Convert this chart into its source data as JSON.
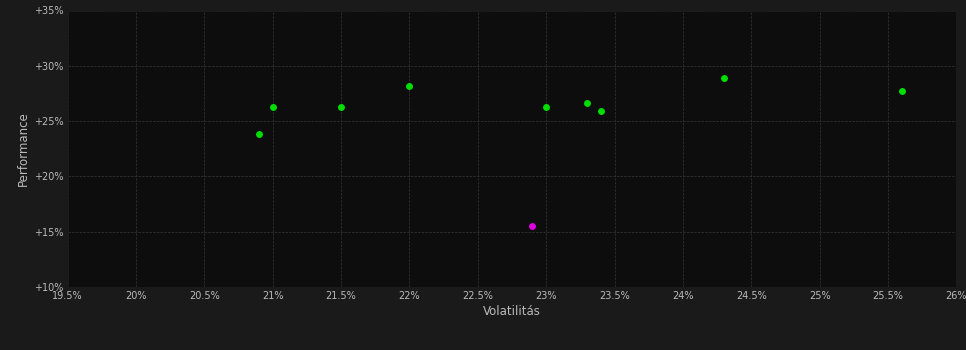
{
  "green_points": [
    [
      20.9,
      23.8
    ],
    [
      21.0,
      26.3
    ],
    [
      21.5,
      26.3
    ],
    [
      22.0,
      28.2
    ],
    [
      23.0,
      26.3
    ],
    [
      23.3,
      26.6
    ],
    [
      23.4,
      25.9
    ],
    [
      24.3,
      28.9
    ],
    [
      25.6,
      27.7
    ]
  ],
  "magenta_points": [
    [
      22.9,
      15.5
    ]
  ],
  "green_color": "#00dd00",
  "magenta_color": "#dd00dd",
  "bg_color": "#1a1a1a",
  "plot_bg_color": "#0d0d0d",
  "grid_color": "#3a3a3a",
  "text_color": "#bbbbbb",
  "xlabel": "Volatilitás",
  "ylabel": "Performance",
  "xlim": [
    19.5,
    26.0
  ],
  "ylim": [
    10.0,
    35.0
  ],
  "xticks": [
    19.5,
    20.0,
    20.5,
    21.0,
    21.5,
    22.0,
    22.5,
    23.0,
    23.5,
    24.0,
    24.5,
    25.0,
    25.5,
    26.0
  ],
  "yticks": [
    10,
    15,
    20,
    25,
    30,
    35
  ],
  "ytick_labels": [
    "+10%",
    "+15%",
    "+20%",
    "+25%",
    "+30%",
    "+35%"
  ],
  "xtick_labels": [
    "19.5%",
    "20%",
    "20.5%",
    "21%",
    "21.5%",
    "22%",
    "22.5%",
    "23%",
    "23.5%",
    "24%",
    "24.5%",
    "25%",
    "25.5%",
    "26%"
  ],
  "marker_size": 25,
  "figsize": [
    9.66,
    3.5
  ],
  "dpi": 100
}
